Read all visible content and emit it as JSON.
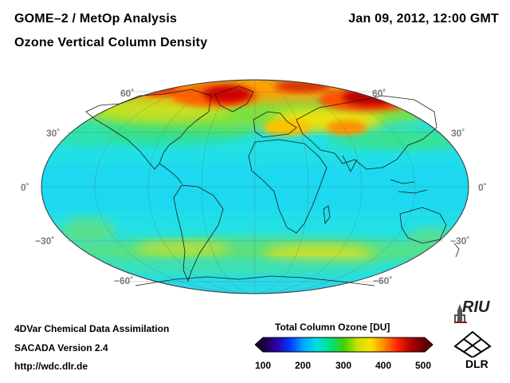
{
  "header": {
    "title": "GOME–2 / MetOp Analysis",
    "subtitle": "Ozone Vertical Column Density",
    "datetime": "Jan 09, 2012, 12:00 GMT"
  },
  "map": {
    "projection": "Mollweide",
    "lat_labels_left": [
      "60˚",
      "30˚",
      "0˚",
      "−30˚",
      "−60˚"
    ],
    "lat_labels_right": [
      "60˚",
      "30˚",
      "0˚",
      "−30˚",
      "−60˚"
    ]
  },
  "footer": {
    "line1": "4DVar Chemical Data Assimilation",
    "line2": "SACADA Version 2.4",
    "line3": "http://wdc.dlr.de"
  },
  "colorbar": {
    "title": "Total Column Ozone [DU]",
    "ticks": [
      "100",
      "200",
      "300",
      "400",
      "500"
    ],
    "min": 100,
    "max": 500,
    "colors": [
      "#1a0033",
      "#2b00a8",
      "#0038ff",
      "#00a8ff",
      "#00e0e0",
      "#00e080",
      "#40d000",
      "#c8e000",
      "#ffe000",
      "#ff8800",
      "#ff2000",
      "#b00000",
      "#600000"
    ]
  },
  "logos": {
    "riu": "RIU",
    "dlr": "DLR"
  }
}
